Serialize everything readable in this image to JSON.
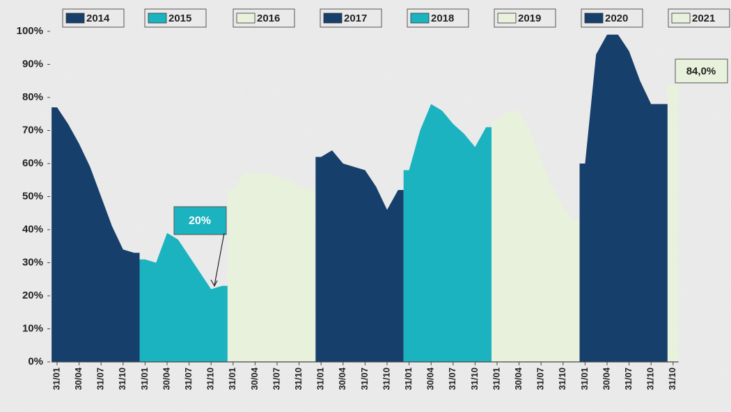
{
  "chart_data": {
    "type": "area",
    "categories": [
      "31/01",
      null,
      "30/04",
      null,
      "31/07",
      null,
      "31/10",
      null,
      "31/01",
      null,
      "30/04",
      null,
      "31/07",
      null,
      "31/10",
      null,
      "31/01",
      null,
      "30/04",
      null,
      "31/07",
      null,
      "31/10",
      null,
      "31/01",
      null,
      "30/04",
      null,
      "31/07",
      null,
      "31/10",
      null,
      "31/01",
      null,
      "30/04",
      null,
      "31/07",
      null,
      "31/10",
      null,
      "31/01",
      null,
      "30/04",
      null,
      "31/07",
      null,
      "31/10",
      null,
      "31/01",
      null,
      "30/04",
      null,
      "31/07",
      null,
      "31/10",
      null,
      "31/10"
    ],
    "series": [
      {
        "name": "2014",
        "color": "#173f6b",
        "values": [
          77,
          72,
          66,
          59,
          50,
          41,
          34,
          33,
          null,
          null,
          null,
          null,
          null,
          null,
          null,
          null,
          null,
          null,
          null,
          null,
          null,
          null,
          null,
          null,
          null,
          null,
          null,
          null,
          null,
          null,
          null,
          null,
          null,
          null,
          null,
          null,
          null,
          null,
          null,
          null,
          null,
          null,
          null,
          null,
          null,
          null,
          null,
          null,
          null,
          null,
          null,
          null,
          null,
          null,
          null,
          null,
          null
        ]
      },
      {
        "name": "2015",
        "color": "#1ab3bf",
        "values": [
          null,
          null,
          null,
          null,
          null,
          null,
          null,
          null,
          31,
          30,
          39,
          37,
          32,
          27,
          22,
          23,
          null,
          null,
          null,
          null,
          null,
          null,
          null,
          null,
          null,
          null,
          null,
          null,
          null,
          null,
          null,
          null,
          null,
          null,
          null,
          null,
          null,
          null,
          null,
          null,
          null,
          null,
          null,
          null,
          null,
          null,
          null,
          null,
          null,
          null,
          null,
          null,
          null,
          null,
          null,
          null,
          null
        ]
      },
      {
        "name": "2016",
        "color": "#e8f1dc",
        "values": [
          null,
          null,
          null,
          null,
          null,
          null,
          null,
          null,
          null,
          null,
          null,
          null,
          null,
          null,
          null,
          null,
          52,
          57,
          57,
          57,
          56,
          55,
          53,
          52,
          null,
          null,
          null,
          null,
          null,
          null,
          null,
          null,
          null,
          null,
          null,
          null,
          null,
          null,
          null,
          null,
          null,
          null,
          null,
          null,
          null,
          null,
          null,
          null,
          null,
          null,
          null,
          null,
          null,
          null,
          null,
          null,
          null
        ]
      },
      {
        "name": "2017",
        "color": "#173f6b",
        "values": [
          null,
          null,
          null,
          null,
          null,
          null,
          null,
          null,
          null,
          null,
          null,
          null,
          null,
          null,
          null,
          null,
          null,
          null,
          null,
          null,
          null,
          null,
          null,
          null,
          62,
          64,
          60,
          59,
          58,
          53,
          46,
          52,
          null,
          null,
          null,
          null,
          null,
          null,
          null,
          null,
          null,
          null,
          null,
          null,
          null,
          null,
          null,
          null,
          null,
          null,
          null,
          null,
          null,
          null,
          null,
          null,
          null
        ]
      },
      {
        "name": "2018",
        "color": "#1ab3bf",
        "values": [
          null,
          null,
          null,
          null,
          null,
          null,
          null,
          null,
          null,
          null,
          null,
          null,
          null,
          null,
          null,
          null,
          null,
          null,
          null,
          null,
          null,
          null,
          null,
          null,
          null,
          null,
          null,
          null,
          null,
          null,
          null,
          null,
          58,
          70,
          78,
          76,
          72,
          69,
          65,
          71,
          null,
          null,
          null,
          null,
          null,
          null,
          null,
          null,
          null,
          null,
          null,
          null,
          null,
          null,
          null,
          null,
          null
        ]
      },
      {
        "name": "2019",
        "color": "#e8f1dc",
        "values": [
          null,
          null,
          null,
          null,
          null,
          null,
          null,
          null,
          null,
          null,
          null,
          null,
          null,
          null,
          null,
          null,
          null,
          null,
          null,
          null,
          null,
          null,
          null,
          null,
          null,
          null,
          null,
          null,
          null,
          null,
          null,
          null,
          null,
          null,
          null,
          null,
          null,
          null,
          null,
          null,
          73,
          76,
          76,
          70,
          61,
          53,
          47,
          43,
          null,
          null,
          null,
          null,
          null,
          null,
          null,
          null,
          null
        ]
      },
      {
        "name": "2020",
        "color": "#173f6b",
        "values": [
          null,
          null,
          null,
          null,
          null,
          null,
          null,
          null,
          null,
          null,
          null,
          null,
          null,
          null,
          null,
          null,
          null,
          null,
          null,
          null,
          null,
          null,
          null,
          null,
          null,
          null,
          null,
          null,
          null,
          null,
          null,
          null,
          null,
          null,
          null,
          null,
          null,
          null,
          null,
          null,
          null,
          null,
          null,
          null,
          null,
          null,
          null,
          null,
          60,
          93,
          99,
          99,
          94,
          85,
          78,
          78,
          null
        ]
      },
      {
        "name": "2021",
        "color": "#e8f1dc",
        "values": [
          null,
          null,
          null,
          null,
          null,
          null,
          null,
          null,
          null,
          null,
          null,
          null,
          null,
          null,
          null,
          null,
          null,
          null,
          null,
          null,
          null,
          null,
          null,
          null,
          null,
          null,
          null,
          null,
          null,
          null,
          null,
          null,
          null,
          null,
          null,
          null,
          null,
          null,
          null,
          null,
          null,
          null,
          null,
          null,
          null,
          null,
          null,
          null,
          null,
          null,
          null,
          null,
          null,
          null,
          null,
          null,
          84
        ]
      }
    ],
    "ylim": [
      0,
      100
    ],
    "yticks": [
      {
        "value": 0,
        "label": "0%"
      },
      {
        "value": 10,
        "label": "10%"
      },
      {
        "value": 20,
        "label": "20%"
      },
      {
        "value": 30,
        "label": "30%"
      },
      {
        "value": 40,
        "label": "40%"
      },
      {
        "value": 50,
        "label": "50%"
      },
      {
        "value": 60,
        "label": "60%"
      },
      {
        "value": 70,
        "label": "70%"
      },
      {
        "value": 80,
        "label": "80%"
      },
      {
        "value": 90,
        "label": "90%"
      },
      {
        "value": 100,
        "label": "100%"
      }
    ],
    "annotations": [
      {
        "text": "20%"
      },
      {
        "text": "84,0%"
      }
    ],
    "legend": "top",
    "grid": false
  }
}
